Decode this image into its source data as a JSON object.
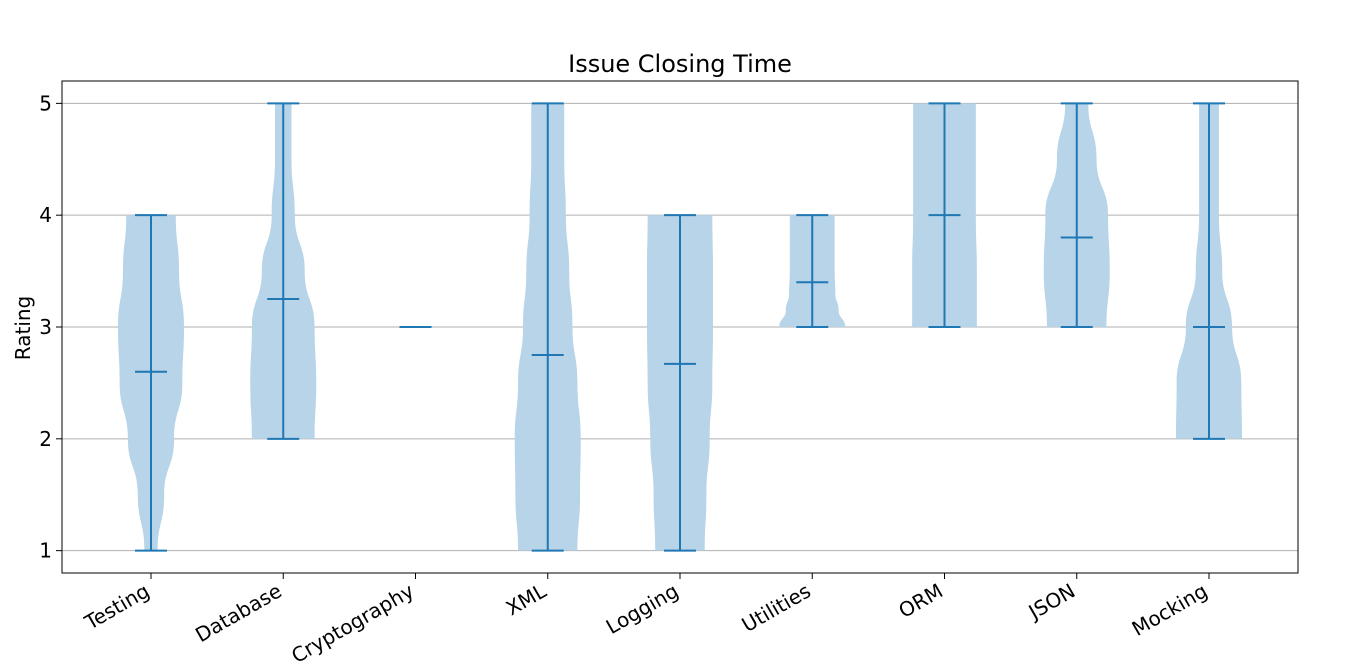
{
  "chart_data": {
    "type": "violin",
    "title": "Issue Closing Time",
    "xlabel": "",
    "ylabel": "Rating",
    "ylim": [
      0.8,
      5.2
    ],
    "yticks": [
      1,
      2,
      3,
      4,
      5
    ],
    "grid": "horizontal",
    "colors": {
      "body": "#b8d4e8",
      "line": "#1f77b4",
      "grid": "#b0b0b0"
    },
    "categories": [
      "Testing",
      "Database",
      "Cryptography",
      "XML",
      "Logging",
      "Utilities",
      "ORM",
      "JSON",
      "Mocking"
    ],
    "series": [
      {
        "category": "Testing",
        "min": 1,
        "max": 4,
        "mean": 2.6,
        "density": [
          [
            1.0,
            0.2
          ],
          [
            1.5,
            0.4
          ],
          [
            2.0,
            0.7
          ],
          [
            2.5,
            0.95
          ],
          [
            3.0,
            1.0
          ],
          [
            3.5,
            0.85
          ],
          [
            4.0,
            0.75
          ]
        ]
      },
      {
        "category": "Database",
        "min": 2,
        "max": 5,
        "mean": 3.25,
        "density": [
          [
            2.0,
            0.95
          ],
          [
            2.5,
            1.0
          ],
          [
            3.0,
            0.95
          ],
          [
            3.5,
            0.65
          ],
          [
            4.0,
            0.35
          ],
          [
            4.5,
            0.25
          ],
          [
            5.0,
            0.25
          ]
        ]
      },
      {
        "category": "Cryptography",
        "min": 3,
        "max": 3,
        "mean": 3,
        "density": []
      },
      {
        "category": "XML",
        "min": 1,
        "max": 5,
        "mean": 2.75,
        "density": [
          [
            1.0,
            0.9
          ],
          [
            1.5,
            0.98
          ],
          [
            2.0,
            1.0
          ],
          [
            2.5,
            0.9
          ],
          [
            3.0,
            0.75
          ],
          [
            3.5,
            0.65
          ],
          [
            4.0,
            0.55
          ],
          [
            4.5,
            0.5
          ],
          [
            5.0,
            0.5
          ]
        ]
      },
      {
        "category": "Logging",
        "min": 1,
        "max": 4,
        "mean": 2.67,
        "density": [
          [
            1.0,
            0.75
          ],
          [
            1.5,
            0.8
          ],
          [
            2.0,
            0.9
          ],
          [
            2.5,
            0.98
          ],
          [
            3.0,
            1.0
          ],
          [
            3.5,
            1.0
          ],
          [
            4.0,
            0.98
          ]
        ]
      },
      {
        "category": "Utilities",
        "min": 3,
        "max": 4,
        "mean": 3.4,
        "density": [
          [
            3.0,
            1.0
          ],
          [
            3.15,
            0.8
          ],
          [
            3.3,
            0.7
          ],
          [
            3.5,
            0.68
          ],
          [
            3.75,
            0.68
          ],
          [
            4.0,
            0.68
          ]
        ]
      },
      {
        "category": "ORM",
        "min": 3,
        "max": 5,
        "mean": 4,
        "density": [
          [
            3.0,
            0.98
          ],
          [
            3.5,
            0.98
          ],
          [
            4.0,
            0.95
          ],
          [
            4.5,
            0.95
          ],
          [
            5.0,
            0.95
          ]
        ]
      },
      {
        "category": "JSON",
        "min": 3,
        "max": 5,
        "mean": 3.8,
        "density": [
          [
            3.0,
            0.9
          ],
          [
            3.5,
            1.0
          ],
          [
            4.0,
            0.95
          ],
          [
            4.5,
            0.6
          ],
          [
            5.0,
            0.35
          ]
        ]
      },
      {
        "category": "Mocking",
        "min": 2,
        "max": 5,
        "mean": 3,
        "density": [
          [
            2.0,
            1.0
          ],
          [
            2.5,
            0.98
          ],
          [
            3.0,
            0.7
          ],
          [
            3.5,
            0.4
          ],
          [
            4.0,
            0.3
          ],
          [
            4.5,
            0.3
          ],
          [
            5.0,
            0.3
          ]
        ]
      }
    ]
  }
}
